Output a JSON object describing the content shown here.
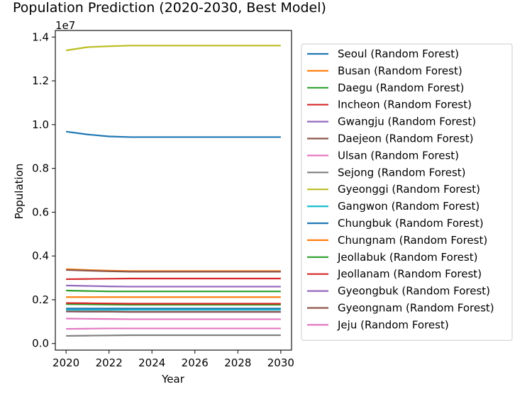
{
  "chart_data": {
    "type": "line",
    "title": "Population Prediction (2020-2030, Best Model)",
    "xlabel": "Year",
    "ylabel": "Population",
    "y_scale_label": "1e7",
    "x_ticks": [
      "2020",
      "2022",
      "2024",
      "2026",
      "2028",
      "2030"
    ],
    "y_ticks": [
      "0.0",
      "0.2",
      "0.4",
      "0.6",
      "0.8",
      "1.0",
      "1.2",
      "1.4"
    ],
    "xlim": [
      2019.5,
      2030.5
    ],
    "ylim": [
      -0.03,
      1.43
    ],
    "legend_position": "outside-right",
    "grid": false,
    "x": [
      2020,
      2021,
      2022,
      2023,
      2024,
      2025,
      2026,
      2027,
      2028,
      2029,
      2030
    ],
    "series": [
      {
        "name": "Seoul (Random Forest)",
        "color": "#1f77b4",
        "values": [
          0.968,
          0.955,
          0.946,
          0.943,
          0.943,
          0.943,
          0.943,
          0.943,
          0.943,
          0.943,
          0.943
        ]
      },
      {
        "name": "Busan (Random Forest)",
        "color": "#ff7f0e",
        "values": [
          0.34,
          0.336,
          0.333,
          0.331,
          0.331,
          0.331,
          0.331,
          0.331,
          0.331,
          0.331,
          0.331
        ]
      },
      {
        "name": "Daegu (Random Forest)",
        "color": "#2ca02c",
        "values": [
          0.242,
          0.24,
          0.238,
          0.238,
          0.238,
          0.238,
          0.238,
          0.238,
          0.238,
          0.238,
          0.238
        ]
      },
      {
        "name": "Incheon (Random Forest)",
        "color": "#d62728",
        "values": [
          0.294,
          0.295,
          0.296,
          0.297,
          0.297,
          0.297,
          0.297,
          0.297,
          0.297,
          0.297,
          0.297
        ]
      },
      {
        "name": "Gwangju (Random Forest)",
        "color": "#9467bd",
        "values": [
          0.146,
          0.145,
          0.145,
          0.144,
          0.144,
          0.144,
          0.144,
          0.144,
          0.144,
          0.144,
          0.144
        ]
      },
      {
        "name": "Daejeon (Random Forest)",
        "color": "#8c564b",
        "values": [
          0.147,
          0.146,
          0.146,
          0.145,
          0.145,
          0.145,
          0.145,
          0.145,
          0.145,
          0.145,
          0.145
        ]
      },
      {
        "name": "Ulsan (Random Forest)",
        "color": "#e377c2",
        "values": [
          0.114,
          0.113,
          0.112,
          0.111,
          0.111,
          0.111,
          0.111,
          0.111,
          0.111,
          0.111,
          0.111
        ]
      },
      {
        "name": "Sejong (Random Forest)",
        "color": "#7f7f7f",
        "values": [
          0.035,
          0.036,
          0.037,
          0.038,
          0.038,
          0.038,
          0.038,
          0.038,
          0.038,
          0.038,
          0.038
        ]
      },
      {
        "name": "Gyeonggi (Random Forest)",
        "color": "#bcbd22",
        "values": [
          1.339,
          1.354,
          1.358,
          1.361,
          1.361,
          1.361,
          1.361,
          1.361,
          1.361,
          1.361,
          1.361
        ]
      },
      {
        "name": "Gangwon (Random Forest)",
        "color": "#17becf",
        "values": [
          0.154,
          0.154,
          0.154,
          0.154,
          0.154,
          0.154,
          0.154,
          0.154,
          0.154,
          0.154,
          0.154
        ]
      },
      {
        "name": "Chungbuk (Random Forest)",
        "color": "#1f77b4",
        "values": [
          0.16,
          0.16,
          0.16,
          0.16,
          0.16,
          0.16,
          0.16,
          0.16,
          0.16,
          0.16,
          0.16
        ]
      },
      {
        "name": "Chungnam (Random Forest)",
        "color": "#ff7f0e",
        "values": [
          0.212,
          0.212,
          0.212,
          0.212,
          0.212,
          0.212,
          0.212,
          0.212,
          0.212,
          0.212,
          0.212
        ]
      },
      {
        "name": "Jeollabuk (Random Forest)",
        "color": "#2ca02c",
        "values": [
          0.18,
          0.179,
          0.178,
          0.177,
          0.177,
          0.177,
          0.177,
          0.177,
          0.177,
          0.177,
          0.177
        ]
      },
      {
        "name": "Jeollanam (Random Forest)",
        "color": "#d62728",
        "values": [
          0.185,
          0.184,
          0.183,
          0.182,
          0.182,
          0.182,
          0.182,
          0.182,
          0.182,
          0.182,
          0.182
        ]
      },
      {
        "name": "Gyeongbuk (Random Forest)",
        "color": "#9467bd",
        "values": [
          0.265,
          0.263,
          0.261,
          0.26,
          0.26,
          0.26,
          0.26,
          0.26,
          0.26,
          0.26,
          0.26
        ]
      },
      {
        "name": "Gyeongnam (Random Forest)",
        "color": "#8c564b",
        "values": [
          0.336,
          0.333,
          0.33,
          0.328,
          0.328,
          0.328,
          0.328,
          0.328,
          0.328,
          0.328,
          0.328
        ]
      },
      {
        "name": "Jeju (Random Forest)",
        "color": "#e377c2",
        "values": [
          0.067,
          0.068,
          0.069,
          0.069,
          0.069,
          0.069,
          0.069,
          0.069,
          0.069,
          0.069,
          0.069
        ]
      }
    ]
  }
}
